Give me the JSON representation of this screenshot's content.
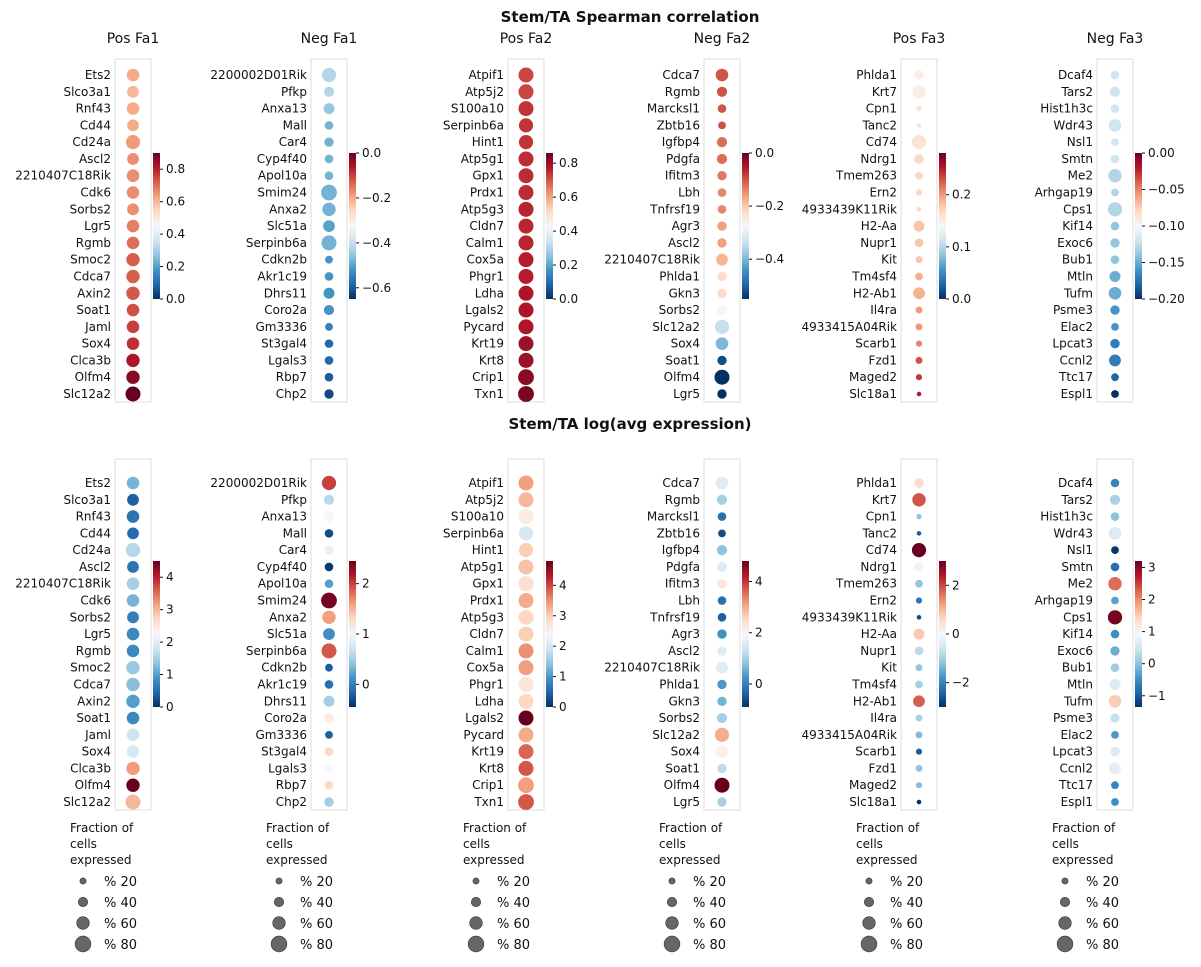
{
  "titles": {
    "top": "Stem/TA Spearman correlation",
    "bottom": "Stem/TA log(avg expression)"
  },
  "legend": {
    "title_lines": [
      "Fraction of",
      "cells",
      "expressed"
    ],
    "entries": [
      {
        "label": "% 20",
        "value": 20
      },
      {
        "label": "% 40",
        "value": 40
      },
      {
        "label": "% 60",
        "value": 60
      },
      {
        "label": "% 80",
        "value": 80
      }
    ]
  },
  "colormap": "RdBu_r",
  "chart_data": [
    {
      "type": "dotplot",
      "row": "correlation",
      "title": "Pos Fa1",
      "genes": [
        "Ets2",
        "Slco3a1",
        "Rnf43",
        "Cd44",
        "Cd24a",
        "Ascl2",
        "2210407C18Rik",
        "Cdk6",
        "Sorbs2",
        "Lgr5",
        "Rgmb",
        "Smoc2",
        "Cdca7",
        "Axin2",
        "Soat1",
        "Jaml",
        "Sox4",
        "Clca3b",
        "Olfm4",
        "Slc12a2"
      ],
      "values": [
        0.62,
        0.6,
        0.62,
        0.62,
        0.64,
        0.66,
        0.66,
        0.66,
        0.66,
        0.68,
        0.7,
        0.72,
        0.72,
        0.73,
        0.74,
        0.76,
        0.78,
        0.82,
        0.86,
        0.9
      ],
      "fractions": [
        60,
        55,
        60,
        55,
        70,
        55,
        60,
        60,
        55,
        60,
        60,
        65,
        65,
        65,
        60,
        60,
        60,
        65,
        65,
        75
      ],
      "colorbar": {
        "min": 0,
        "max": 0.9,
        "ticks": [
          0.0,
          0.2,
          0.4,
          0.6,
          0.8
        ],
        "tick_labels": [
          "0.0",
          "0.2",
          "0.4",
          "0.6",
          "0.8"
        ]
      }
    },
    {
      "type": "dotplot",
      "row": "correlation",
      "title": "Neg Fa1",
      "genes": [
        "2200002D01Rik",
        "Pfkp",
        "Anxa13",
        "Mall",
        "Car4",
        "Cyp4f40",
        "Apol10a",
        "Smim24",
        "Anxa2",
        "Slc51a",
        "Serpinb6a",
        "Cdkn2b",
        "Akr1c19",
        "Dhrs11",
        "Coro2a",
        "Gm3336",
        "St3gal4",
        "Lgals3",
        "Rbp7",
        "Chp2"
      ],
      "values": [
        -0.42,
        -0.42,
        -0.45,
        -0.48,
        -0.48,
        -0.48,
        -0.48,
        -0.48,
        -0.48,
        -0.5,
        -0.48,
        -0.52,
        -0.52,
        -0.52,
        -0.52,
        -0.55,
        -0.58,
        -0.58,
        -0.6,
        -0.62
      ],
      "fractions": [
        70,
        45,
        50,
        35,
        40,
        35,
        35,
        80,
        65,
        55,
        75,
        30,
        35,
        50,
        45,
        30,
        35,
        35,
        35,
        40
      ],
      "colorbar": {
        "min": -0.65,
        "max": 0.0,
        "ticks": [
          -0.6,
          -0.4,
          -0.2,
          0.0
        ],
        "tick_labels": [
          "−0.6",
          "−0.4",
          "−0.2",
          "0.0"
        ]
      }
    },
    {
      "type": "dotplot",
      "row": "correlation",
      "title": "Pos Fa2",
      "genes": [
        "Atpif1",
        "Atp5j2",
        "S100a10",
        "Serpinb6a",
        "Hint1",
        "Atp5g1",
        "Gpx1",
        "Prdx1",
        "Atp5g3",
        "Cldn7",
        "Calm1",
        "Cox5a",
        "Phgr1",
        "Ldha",
        "Lgals2",
        "Pycard",
        "Krt19",
        "Krt8",
        "Crip1",
        "Txn1"
      ],
      "values": [
        0.72,
        0.72,
        0.74,
        0.74,
        0.74,
        0.75,
        0.75,
        0.75,
        0.76,
        0.76,
        0.76,
        0.77,
        0.77,
        0.78,
        0.78,
        0.78,
        0.8,
        0.8,
        0.82,
        0.84
      ],
      "fractions": [
        75,
        75,
        75,
        70,
        70,
        75,
        75,
        75,
        75,
        75,
        75,
        75,
        75,
        75,
        75,
        75,
        75,
        75,
        80,
        80
      ],
      "colorbar": {
        "min": 0,
        "max": 0.86,
        "ticks": [
          0.0,
          0.2,
          0.4,
          0.6,
          0.8
        ],
        "tick_labels": [
          "0.0",
          "0.2",
          "0.4",
          "0.6",
          "0.8"
        ]
      }
    },
    {
      "type": "dotplot",
      "row": "correlation",
      "title": "Neg Fa2",
      "genes": [
        "Cdca7",
        "Rgmb",
        "Marcksl1",
        "Zbtb16",
        "Igfbp4",
        "Pdgfa",
        "Ifitm3",
        "Lbh",
        "Tnfrsf19",
        "Agr3",
        "Ascl2",
        "2210407C18Rik",
        "Phlda1",
        "Gkn3",
        "Sorbs2",
        "Slc12a2",
        "Sox4",
        "Soat1",
        "Olfm4",
        "Lgr5"
      ],
      "values": [
        -0.1,
        -0.1,
        -0.1,
        -0.1,
        -0.12,
        -0.12,
        -0.13,
        -0.14,
        -0.14,
        -0.16,
        -0.16,
        -0.18,
        -0.22,
        -0.22,
        -0.28,
        -0.34,
        -0.4,
        -0.52,
        -0.55,
        -0.58
      ],
      "fractions": [
        60,
        45,
        35,
        30,
        45,
        45,
        40,
        35,
        35,
        40,
        40,
        55,
        40,
        40,
        45,
        70,
        60,
        40,
        75,
        40
      ],
      "colorbar": {
        "min": -0.55,
        "max": 0.0,
        "ticks": [
          -0.4,
          -0.2,
          0.0
        ],
        "tick_labels": [
          "−0.4",
          "−0.2",
          "0.0"
        ]
      }
    },
    {
      "type": "dotplot",
      "row": "correlation",
      "title": "Pos Fa3",
      "genes": [
        "Phlda1",
        "Krt7",
        "Cpn1",
        "Tanc2",
        "Cd74",
        "Ndrg1",
        "Tmem263",
        "Ern2",
        "4933439K11Rik",
        "H2-Aa",
        "Nupr1",
        "Kit",
        "Tm4sf4",
        "H2-Ab1",
        "Il4ra",
        "4933415A04Rik",
        "Scarb1",
        "Fzd1",
        "Maged2",
        "Slc18a1"
      ],
      "values": [
        0.15,
        0.15,
        0.16,
        0.16,
        0.16,
        0.17,
        0.17,
        0.17,
        0.17,
        0.18,
        0.18,
        0.18,
        0.19,
        0.19,
        0.2,
        0.2,
        0.21,
        0.23,
        0.24,
        0.25
      ],
      "fractions": [
        40,
        65,
        15,
        10,
        70,
        40,
        30,
        20,
        10,
        50,
        35,
        25,
        30,
        55,
        25,
        25,
        20,
        25,
        20,
        10
      ],
      "colorbar": {
        "min": 0,
        "max": 0.28,
        "ticks": [
          0.0,
          0.1,
          0.2
        ],
        "tick_labels": [
          "0.0",
          "0.1",
          "0.2"
        ]
      }
    },
    {
      "type": "dotplot",
      "row": "correlation",
      "title": "Neg Fa3",
      "genes": [
        "Dcaf4",
        "Tars2",
        "Hist1h3c",
        "Wdr43",
        "Nsl1",
        "Smtn",
        "Me2",
        "Arhgap19",
        "Cps1",
        "Kif14",
        "Exoc6",
        "Bub1",
        "Mtln",
        "Tufm",
        "Psme3",
        "Elac2",
        "Lpcat3",
        "Ccnl2",
        "Ttc17",
        "Espl1"
      ],
      "values": [
        -0.12,
        -0.12,
        -0.12,
        -0.12,
        -0.12,
        -0.12,
        -0.13,
        -0.13,
        -0.13,
        -0.14,
        -0.14,
        -0.14,
        -0.15,
        -0.15,
        -0.16,
        -0.16,
        -0.17,
        -0.17,
        -0.18,
        -0.2
      ],
      "fractions": [
        35,
        45,
        35,
        60,
        30,
        35,
        65,
        30,
        70,
        35,
        40,
        35,
        50,
        60,
        40,
        30,
        40,
        55,
        30,
        30
      ],
      "colorbar": {
        "min": -0.2,
        "max": 0.0,
        "ticks": [
          -0.2,
          -0.15,
          -0.1,
          -0.05,
          0.0
        ],
        "tick_labels": [
          "−0.20",
          "−0.15",
          "−0.10",
          "−0.05",
          "0.00"
        ]
      }
    },
    {
      "type": "dotplot",
      "row": "expression",
      "title": "",
      "genes": [
        "Ets2",
        "Slco3a1",
        "Rnf43",
        "Cd44",
        "Cd24a",
        "Ascl2",
        "2210407C18Rik",
        "Cdk6",
        "Sorbs2",
        "Lgr5",
        "Rgmb",
        "Smoc2",
        "Cdca7",
        "Axin2",
        "Soat1",
        "Jaml",
        "Sox4",
        "Clca3b",
        "Olfm4",
        "Slc12a2"
      ],
      "values": [
        1.2,
        0.4,
        0.6,
        0.5,
        1.6,
        0.6,
        1.5,
        1.2,
        0.7,
        0.8,
        0.8,
        1.4,
        1.3,
        1.0,
        0.8,
        1.8,
        1.9,
        3.2,
        4.5,
        3.0
      ],
      "fractions": [
        60,
        55,
        60,
        55,
        70,
        55,
        60,
        60,
        55,
        60,
        60,
        65,
        65,
        65,
        60,
        60,
        60,
        65,
        65,
        75
      ],
      "colorbar": {
        "min": 0,
        "max": 4.5,
        "ticks": [
          0,
          1,
          2,
          3,
          4
        ],
        "tick_labels": [
          "0",
          "1",
          "2",
          "3",
          "4"
        ]
      }
    },
    {
      "type": "dotplot",
      "row": "expression",
      "title": "",
      "genes": [
        "2200002D01Rik",
        "Pfkp",
        "Anxa13",
        "Mall",
        "Car4",
        "Cyp4f40",
        "Apol10a",
        "Smim24",
        "Anxa2",
        "Slc51a",
        "Serpinb6a",
        "Cdkn2b",
        "Akr1c19",
        "Dhrs11",
        "Coro2a",
        "Gm3336",
        "St3gal4",
        "Lgals3",
        "Rbp7",
        "Chp2"
      ],
      "values": [
        2.0,
        0.6,
        1.0,
        -0.3,
        0.9,
        -0.4,
        0.2,
        2.4,
        1.6,
        0.1,
        1.9,
        -0.2,
        -0.1,
        0.5,
        1.1,
        -0.2,
        1.3,
        1.0,
        1.3,
        0.5
      ],
      "fractions": [
        70,
        45,
        50,
        35,
        40,
        35,
        35,
        80,
        65,
        55,
        75,
        30,
        35,
        50,
        45,
        30,
        35,
        35,
        35,
        40
      ],
      "colorbar": {
        "min": -0.45,
        "max": 2.45,
        "ticks": [
          0,
          1,
          2
        ],
        "tick_labels": [
          "0",
          "1",
          "2"
        ]
      }
    },
    {
      "type": "dotplot",
      "row": "expression",
      "title": "",
      "genes": [
        "Atpif1",
        "Atp5j2",
        "S100a10",
        "Serpinb6a",
        "Hint1",
        "Atp5g1",
        "Gpx1",
        "Prdx1",
        "Atp5g3",
        "Cldn7",
        "Calm1",
        "Cox5a",
        "Phgr1",
        "Ldha",
        "Lgals2",
        "Pycard",
        "Krt19",
        "Krt8",
        "Crip1",
        "Txn1"
      ],
      "values": [
        3.4,
        3.2,
        2.6,
        2.0,
        3.0,
        3.1,
        2.8,
        3.3,
        2.9,
        3.0,
        3.5,
        3.4,
        2.7,
        2.9,
        4.8,
        3.3,
        3.8,
        3.9,
        3.4,
        3.9
      ],
      "fractions": [
        75,
        75,
        75,
        70,
        70,
        75,
        75,
        75,
        75,
        75,
        75,
        75,
        75,
        75,
        75,
        75,
        75,
        75,
        80,
        80
      ],
      "colorbar": {
        "min": 0,
        "max": 4.8,
        "ticks": [
          0,
          1,
          2,
          3,
          4
        ],
        "tick_labels": [
          "0",
          "1",
          "2",
          "3",
          "4"
        ]
      }
    },
    {
      "type": "dotplot",
      "row": "expression",
      "title": "",
      "genes": [
        "Cdca7",
        "Rgmb",
        "Marcksl1",
        "Zbtb16",
        "Igfbp4",
        "Pdgfa",
        "Ifitm3",
        "Lbh",
        "Tnfrsf19",
        "Agr3",
        "Ascl2",
        "2210407C18Rik",
        "Phlda1",
        "Gkn3",
        "Sorbs2",
        "Slc12a2",
        "Sox4",
        "Soat1",
        "Olfm4",
        "Lgr5"
      ],
      "values": [
        1.6,
        1.0,
        -0.2,
        -0.6,
        0.8,
        1.6,
        2.3,
        -0.2,
        -0.4,
        0.2,
        1.6,
        1.6,
        0.3,
        0.6,
        1.0,
        3.0,
        2.1,
        1.2,
        4.8,
        1.0
      ],
      "fractions": [
        60,
        45,
        35,
        30,
        45,
        45,
        40,
        35,
        35,
        40,
        40,
        55,
        40,
        40,
        45,
        70,
        60,
        40,
        75,
        40
      ],
      "colorbar": {
        "min": -0.9,
        "max": 4.8,
        "ticks": [
          0,
          2,
          4
        ],
        "tick_labels": [
          "0",
          "2",
          "4"
        ]
      }
    },
    {
      "type": "dotplot",
      "row": "expression",
      "title": "",
      "genes": [
        "Phlda1",
        "Krt7",
        "Cpn1",
        "Tanc2",
        "Cd74",
        "Ndrg1",
        "Tmem263",
        "Ern2",
        "4933439K11Rik",
        "H2-Aa",
        "Nupr1",
        "Kit",
        "Tm4sf4",
        "H2-Ab1",
        "Il4ra",
        "4933415A04Rik",
        "Scarb1",
        "Fzd1",
        "Maged2",
        "Slc18a1"
      ],
      "values": [
        0.6,
        1.9,
        -1.2,
        -2.5,
        3.0,
        -0.1,
        -1.2,
        -2.2,
        -2.7,
        0.8,
        -0.8,
        -1.2,
        -1.0,
        1.8,
        -1.0,
        -1.3,
        -2.5,
        -1.2,
        -1.3,
        -3.0
      ],
      "fractions": [
        40,
        65,
        15,
        10,
        70,
        40,
        30,
        20,
        10,
        50,
        35,
        25,
        30,
        55,
        25,
        25,
        20,
        25,
        20,
        10
      ],
      "colorbar": {
        "min": -3.0,
        "max": 3.0,
        "ticks": [
          -2,
          0,
          2
        ],
        "tick_labels": [
          "−2",
          "0",
          "2"
        ]
      }
    },
    {
      "type": "dotplot",
      "row": "expression",
      "title": "",
      "genes": [
        "Dcaf4",
        "Tars2",
        "Hist1h3c",
        "Wdr43",
        "Nsl1",
        "Smtn",
        "Me2",
        "Arhgap19",
        "Cps1",
        "Kif14",
        "Exoc6",
        "Bub1",
        "Mtln",
        "Tufm",
        "Psme3",
        "Elac2",
        "Lpcat3",
        "Ccnl2",
        "Ttc17",
        "Espl1"
      ],
      "values": [
        -0.6,
        0.2,
        0.0,
        0.6,
        -1.3,
        -0.8,
        2.2,
        -0.3,
        3.1,
        -0.5,
        -0.2,
        0.1,
        0.6,
        1.5,
        0.4,
        -0.4,
        0.6,
        0.7,
        -0.6,
        -0.5
      ],
      "fractions": [
        35,
        45,
        35,
        60,
        30,
        35,
        65,
        30,
        70,
        35,
        40,
        35,
        50,
        60,
        40,
        30,
        40,
        55,
        30,
        30
      ],
      "colorbar": {
        "min": -1.35,
        "max": 3.2,
        "ticks": [
          -1,
          0,
          1,
          2,
          3
        ],
        "tick_labels": [
          "−1",
          "0",
          "1",
          "2",
          "3"
        ]
      }
    }
  ]
}
